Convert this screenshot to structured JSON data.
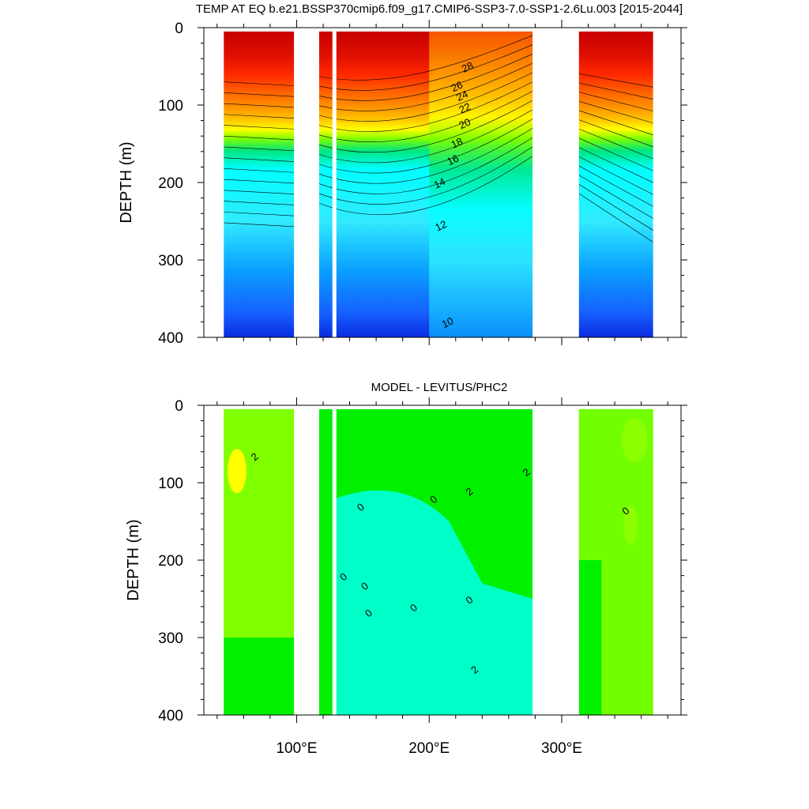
{
  "chart_data": [
    {
      "type": "heatmap",
      "title": "TEMP AT EQ b.e21.BSSP370cmip6.f09_g17.CMIP6-SSP3-7.0-SSP1-2.6Lu.003 [2015-2044]",
      "xlabel": "",
      "ylabel": "DEPTH (m)",
      "xlim": [
        30,
        390
      ],
      "ylim": [
        400,
        0
      ],
      "x_ticks": [
        100,
        200,
        300
      ],
      "x_tick_labels": [
        "100°E",
        "200°E",
        "300°E"
      ],
      "y_ticks": [
        0,
        100,
        200,
        300,
        400
      ],
      "y_tick_labels": [
        "0",
        "100",
        "200",
        "300",
        "400"
      ],
      "land_gaps": [
        [
          98,
          117
        ],
        [
          127,
          130
        ],
        [
          278,
          313
        ],
        [
          369,
          390
        ]
      ],
      "contour_labels": [
        "28",
        "26",
        "24",
        "22",
        "20",
        "18",
        "16",
        "14",
        "12",
        "10"
      ],
      "colorscale": [
        "#0a2be0",
        "#1660ff",
        "#0aa0ff",
        "#1ec6ff",
        "#31ebff",
        "#00ffff",
        "#00e680",
        "#00f000",
        "#80ff00",
        "#e6f000",
        "#ffff00",
        "#ffc800",
        "#ff9600",
        "#ff6400",
        "#ff2800",
        "#e01000",
        "#c80000"
      ],
      "grid": false
    },
    {
      "type": "heatmap",
      "title": "MODEL - LEVITUS/PHC2",
      "xlabel": "",
      "ylabel": "DEPTH (m)",
      "xlim": [
        30,
        390
      ],
      "ylim": [
        400,
        0
      ],
      "x_ticks": [
        100,
        200,
        300
      ],
      "x_tick_labels": [
        "100°E",
        "200°E",
        "300°E"
      ],
      "y_ticks": [
        0,
        100,
        200,
        300,
        400
      ],
      "y_tick_labels": [
        "0",
        "100",
        "200",
        "300",
        "400"
      ],
      "land_gaps": [
        [
          98,
          117
        ],
        [
          127,
          130
        ],
        [
          278,
          313
        ],
        [
          369,
          390
        ]
      ],
      "contour_labels": [
        "2",
        "0",
        "0",
        "0",
        "0",
        "0",
        "0",
        "0",
        "2",
        "2",
        "2",
        "0"
      ],
      "colorscale": [
        "#00ffc8",
        "#00f000",
        "#80ff00",
        "#ffff00",
        "#ffd000"
      ],
      "grid": false
    }
  ]
}
